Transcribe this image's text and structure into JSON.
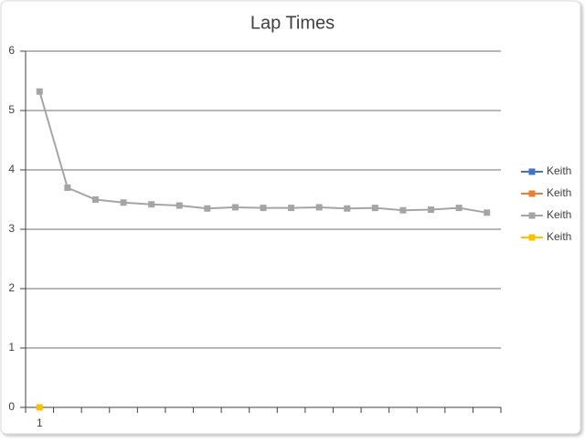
{
  "chart_data": {
    "type": "line",
    "title": "Lap Times",
    "categories": [
      "1",
      null,
      null,
      null,
      null,
      null,
      null,
      null,
      null,
      null,
      null,
      null,
      null,
      null,
      null,
      null,
      null
    ],
    "series": [
      {
        "name": "Keith",
        "color": "#4472c4",
        "values": [
          null,
          null,
          null,
          null,
          null,
          null,
          null,
          null,
          null,
          null,
          null,
          null,
          null,
          null,
          null,
          null,
          null
        ]
      },
      {
        "name": "Keith",
        "color": "#ed7d31",
        "values": [
          null,
          null,
          null,
          null,
          null,
          null,
          null,
          null,
          null,
          null,
          null,
          null,
          null,
          null,
          null,
          null,
          null
        ]
      },
      {
        "name": "Keith",
        "color": "#a5a5a5",
        "values": [
          5.32,
          3.7,
          3.5,
          3.45,
          3.42,
          3.4,
          3.35,
          3.37,
          3.36,
          3.36,
          3.37,
          3.35,
          3.36,
          3.32,
          3.33,
          3.36,
          3.28
        ]
      },
      {
        "name": "Keith",
        "color": "#ffc000",
        "values": [
          0,
          null,
          null,
          null,
          null,
          null,
          null,
          null,
          null,
          null,
          null,
          null,
          null,
          null,
          null,
          null,
          null
        ]
      }
    ],
    "ylim": [
      0,
      6
    ],
    "yticks": [
      0,
      1,
      2,
      3,
      4,
      5,
      6
    ],
    "grid": true,
    "legend": "right"
  }
}
